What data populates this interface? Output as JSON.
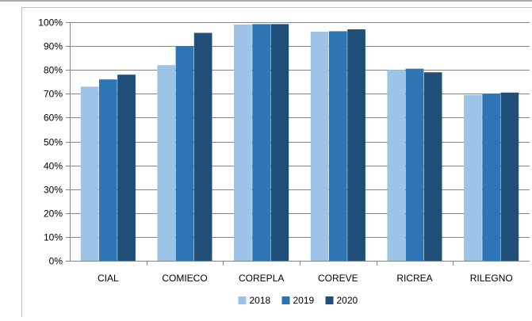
{
  "chart_data": {
    "type": "bar",
    "categories": [
      "CIAL",
      "COMIECO",
      "COREPLA",
      "COREVE",
      "RICREA",
      "RILEGNO"
    ],
    "series": [
      {
        "name": "2018",
        "color": "#9dc3e6",
        "values": [
          73,
          82,
          99,
          96,
          80,
          69.5
        ]
      },
      {
        "name": "2019",
        "color": "#2e75b6",
        "values": [
          76,
          90,
          99.2,
          96.2,
          80.5,
          70
        ]
      },
      {
        "name": "2020",
        "color": "#1f4e79",
        "values": [
          78,
          95.5,
          99.2,
          97,
          79,
          70.5
        ]
      }
    ],
    "y_ticks": [
      "0%",
      "10%",
      "20%",
      "30%",
      "40%",
      "50%",
      "60%",
      "70%",
      "80%",
      "90%",
      "100%"
    ],
    "ylim": [
      0,
      100
    ],
    "grid": true,
    "legend": "bottom"
  }
}
